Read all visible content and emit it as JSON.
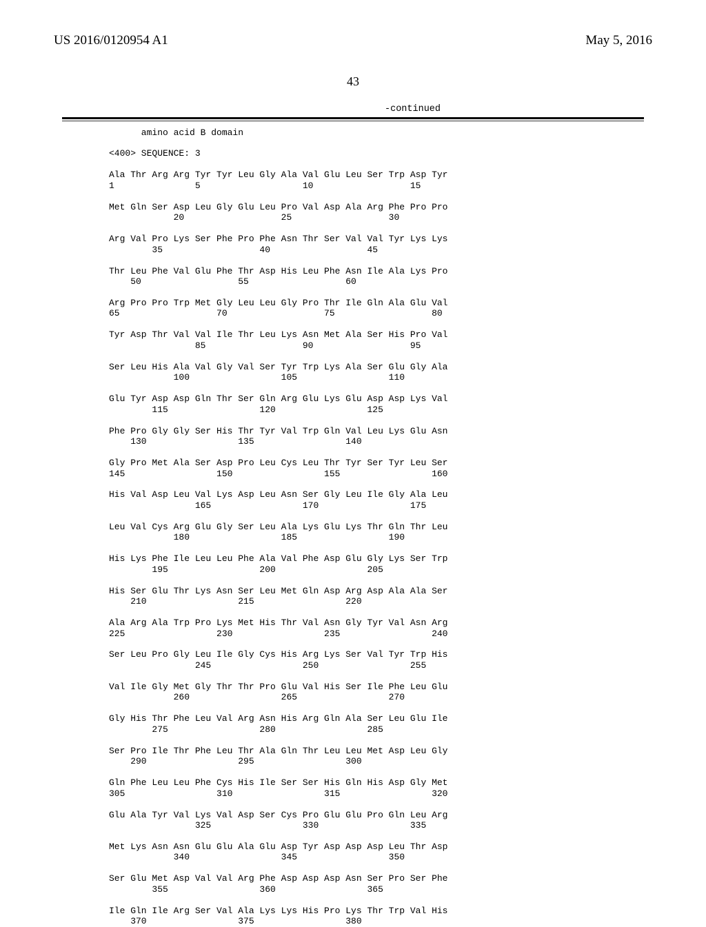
{
  "header": {
    "publication_number": "US 2016/0120954 A1",
    "publication_date": "May 5, 2016"
  },
  "page_number": "43",
  "continued_label": "-continued",
  "sequence": {
    "domain_label": "      amino acid B domain",
    "seq_header": "<400> SEQUENCE: 3",
    "rows": [
      {
        "aa": "Ala Thr Arg Arg Tyr Tyr Leu Gly Ala Val Glu Leu Ser Trp Asp Tyr",
        "num": "1               5                   10                  15"
      },
      {
        "aa": "Met Gln Ser Asp Leu Gly Glu Leu Pro Val Asp Ala Arg Phe Pro Pro",
        "num": "            20                  25                  30"
      },
      {
        "aa": "Arg Val Pro Lys Ser Phe Pro Phe Asn Thr Ser Val Val Tyr Lys Lys",
        "num": "        35                  40                  45"
      },
      {
        "aa": "Thr Leu Phe Val Glu Phe Thr Asp His Leu Phe Asn Ile Ala Lys Pro",
        "num": "    50                  55                  60"
      },
      {
        "aa": "Arg Pro Pro Trp Met Gly Leu Leu Gly Pro Thr Ile Gln Ala Glu Val",
        "num": "65                  70                  75                  80"
      },
      {
        "aa": "Tyr Asp Thr Val Val Ile Thr Leu Lys Asn Met Ala Ser His Pro Val",
        "num": "                85                  90                  95"
      },
      {
        "aa": "Ser Leu His Ala Val Gly Val Ser Tyr Trp Lys Ala Ser Glu Gly Ala",
        "num": "            100                 105                 110"
      },
      {
        "aa": "Glu Tyr Asp Asp Gln Thr Ser Gln Arg Glu Lys Glu Asp Asp Lys Val",
        "num": "        115                 120                 125"
      },
      {
        "aa": "Phe Pro Gly Gly Ser His Thr Tyr Val Trp Gln Val Leu Lys Glu Asn",
        "num": "    130                 135                 140"
      },
      {
        "aa": "Gly Pro Met Ala Ser Asp Pro Leu Cys Leu Thr Tyr Ser Tyr Leu Ser",
        "num": "145                 150                 155                 160"
      },
      {
        "aa": "His Val Asp Leu Val Lys Asp Leu Asn Ser Gly Leu Ile Gly Ala Leu",
        "num": "                165                 170                 175"
      },
      {
        "aa": "Leu Val Cys Arg Glu Gly Ser Leu Ala Lys Glu Lys Thr Gln Thr Leu",
        "num": "            180                 185                 190"
      },
      {
        "aa": "His Lys Phe Ile Leu Leu Phe Ala Val Phe Asp Glu Gly Lys Ser Trp",
        "num": "        195                 200                 205"
      },
      {
        "aa": "His Ser Glu Thr Lys Asn Ser Leu Met Gln Asp Arg Asp Ala Ala Ser",
        "num": "    210                 215                 220"
      },
      {
        "aa": "Ala Arg Ala Trp Pro Lys Met His Thr Val Asn Gly Tyr Val Asn Arg",
        "num": "225                 230                 235                 240"
      },
      {
        "aa": "Ser Leu Pro Gly Leu Ile Gly Cys His Arg Lys Ser Val Tyr Trp His",
        "num": "                245                 250                 255"
      },
      {
        "aa": "Val Ile Gly Met Gly Thr Thr Pro Glu Val His Ser Ile Phe Leu Glu",
        "num": "            260                 265                 270"
      },
      {
        "aa": "Gly His Thr Phe Leu Val Arg Asn His Arg Gln Ala Ser Leu Glu Ile",
        "num": "        275                 280                 285"
      },
      {
        "aa": "Ser Pro Ile Thr Phe Leu Thr Ala Gln Thr Leu Leu Met Asp Leu Gly",
        "num": "    290                 295                 300"
      },
      {
        "aa": "Gln Phe Leu Leu Phe Cys His Ile Ser Ser His Gln His Asp Gly Met",
        "num": "305                 310                 315                 320"
      },
      {
        "aa": "Glu Ala Tyr Val Lys Val Asp Ser Cys Pro Glu Glu Pro Gln Leu Arg",
        "num": "                325                 330                 335"
      },
      {
        "aa": "Met Lys Asn Asn Glu Glu Ala Glu Asp Tyr Asp Asp Asp Leu Thr Asp",
        "num": "            340                 345                 350"
      },
      {
        "aa": "Ser Glu Met Asp Val Val Arg Phe Asp Asp Asp Asn Ser Pro Ser Phe",
        "num": "        355                 360                 365"
      },
      {
        "aa": "Ile Gln Ile Arg Ser Val Ala Lys Lys His Pro Lys Thr Trp Val His",
        "num": "    370                 375                 380"
      }
    ]
  }
}
